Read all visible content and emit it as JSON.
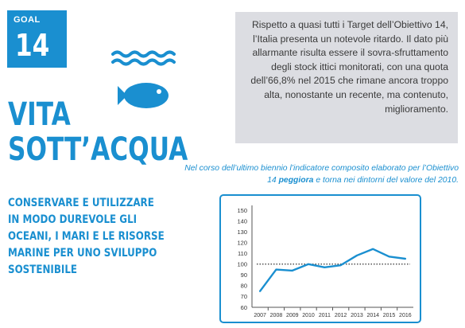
{
  "goal": {
    "label": "GOAL",
    "number": "14"
  },
  "title": {
    "line1": "VITA",
    "line2": "SOTT’ACQUA"
  },
  "subtitle": "CONSERVARE E UTILIZZARE IN MODO DUREVOLE GLI OCEANI, I MARI E LE RISORSE MARINE PER UNO SVILUPPO SOSTENIBILE",
  "info_text": "Rispetto a quasi tutti i Target dell’Obiettivo 14, l’Italia presenta un notevole ritardo. Il dato più allarmante risulta essere il sovra-sfruttamento degli stock ittici monitorati, con una quota dell’66,8% nel 2015 che rimane ancora troppo alta, nonostante un recente, ma contenuto, miglioramento.",
  "caption": {
    "part1": "Nel corso dell’ultimo biennio l’indicatore composito elaborato per l’Obiettivo 14 ",
    "bold": "peggiora",
    "part2": " e torna nei dintorni del valore del 2010."
  },
  "icon": "fish-waves-icon",
  "colors": {
    "brand_blue": "#1a8fd0",
    "info_bg": "#dcdde2",
    "text_dark": "#3a3a3a"
  },
  "chart_data": {
    "type": "line",
    "x": [
      "2007",
      "2008",
      "2009",
      "2010",
      "2011",
      "2012",
      "2013",
      "2014",
      "2015",
      "2016"
    ],
    "series": [
      {
        "values": [
          75,
          95,
          94,
          100,
          97,
          99,
          108,
          114,
          107,
          105
        ]
      }
    ],
    "reference_line": 100,
    "ylim": [
      60,
      150
    ],
    "yticks": [
      60,
      70,
      80,
      90,
      100,
      110,
      120,
      130,
      140,
      150
    ],
    "grid": false,
    "line_color": "#1a8fd0",
    "reference_color": "#333333"
  }
}
